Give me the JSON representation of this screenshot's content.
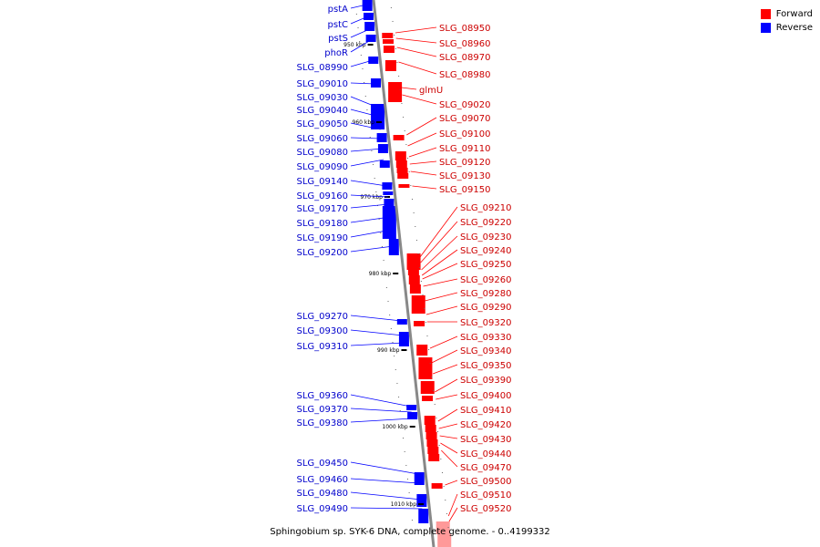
{
  "legend": [
    {
      "label": "Forward",
      "color": "#ff0000"
    },
    {
      "label": "Reverse",
      "color": "#0000ff"
    }
  ],
  "caption": "Sphingobium sp. SYK-6 DNA, complete genome. - 0..4199332",
  "colors": {
    "forward": "#ff0000",
    "reverse": "#0000ff",
    "backbone": "#888888",
    "forward_label": "#cc0000",
    "reverse_label": "#0000cc"
  },
  "ruler": [
    "950 kbp",
    "960 kbp",
    "970 kbp",
    "980 kbp",
    "990 kbp",
    "1000 kbp",
    "1010 kbp"
  ],
  "reverse_genes": [
    "pstA",
    "pstC",
    "pstS",
    "phoR",
    "SLG_08990",
    "SLG_09010",
    "SLG_09030",
    "SLG_09040",
    "SLG_09050",
    "SLG_09060",
    "SLG_09080",
    "SLG_09090",
    "SLG_09140",
    "SLG_09160",
    "SLG_09170",
    "SLG_09180",
    "SLG_09190",
    "SLG_09200",
    "SLG_09270",
    "SLG_09300",
    "SLG_09310",
    "SLG_09360",
    "SLG_09370",
    "SLG_09380",
    "SLG_09450",
    "SLG_09460",
    "SLG_09480",
    "SLG_09490"
  ],
  "forward_genes": [
    "SLG_08950",
    "SLG_08960",
    "SLG_08970",
    "SLG_08980",
    "glmU",
    "SLG_09020",
    "SLG_09070",
    "SLG_09100",
    "SLG_09110",
    "SLG_09120",
    "SLG_09130",
    "SLG_09150",
    "SLG_09210",
    "SLG_09220",
    "SLG_09230",
    "SLG_09240",
    "SLG_09250",
    "SLG_09260",
    "SLG_09280",
    "SLG_09290",
    "SLG_09320",
    "SLG_09330",
    "SLG_09340",
    "SLG_09350",
    "SLG_09390",
    "SLG_09400",
    "SLG_09410",
    "SLG_09420",
    "SLG_09430",
    "SLG_09440",
    "SLG_09470",
    "SLG_09500",
    "SLG_09510",
    "SLG_09520"
  ]
}
